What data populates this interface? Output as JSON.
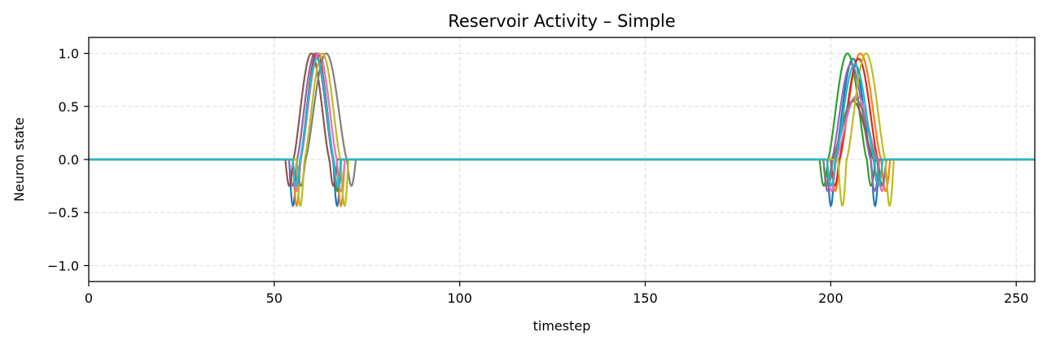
{
  "chart_data": {
    "type": "line",
    "title": "Reservoir Activity – Simple",
    "xlabel": "timestep",
    "ylabel": "Neuron state",
    "xlim": [
      0,
      255
    ],
    "ylim": [
      -1.15,
      1.15
    ],
    "xticks": [
      0,
      50,
      100,
      150,
      200,
      250
    ],
    "xtick_labels": [
      "0",
      "50",
      "100",
      "150",
      "200",
      "250"
    ],
    "yticks": [
      -1.0,
      -0.5,
      0.0,
      0.5,
      1.0
    ],
    "ytick_labels": [
      "−1.0",
      "−0.5",
      "0.0",
      "0.5",
      "1.0"
    ],
    "grid": true,
    "legend": false,
    "series": [
      {
        "color": "#1f77b4",
        "bursts": [
          {
            "onset": 54,
            "width": 14,
            "peak": 1.0,
            "dip": 0.44
          },
          {
            "onset": 199,
            "width": 14,
            "peak": 0.95,
            "dip": 0.44
          }
        ]
      },
      {
        "color": "#ff7f0e",
        "bursts": [
          {
            "onset": 55,
            "width": 14,
            "peak": 1.0,
            "dip": 0.44
          },
          {
            "onset": 200,
            "width": 16,
            "peak": 1.0,
            "dip": 0.3
          }
        ]
      },
      {
        "color": "#2ca02c",
        "bursts": [
          {
            "onset": 55,
            "width": 13,
            "peak": 1.0,
            "dip": 0.3
          },
          {
            "onset": 197,
            "width": 15,
            "peak": 1.0,
            "dip": 0.25
          }
        ]
      },
      {
        "color": "#d62728",
        "bursts": [
          {
            "onset": 55,
            "width": 13,
            "peak": 1.0,
            "dip": 0.25
          },
          {
            "onset": 200,
            "width": 15,
            "peak": 0.95,
            "dip": 0.25
          }
        ]
      },
      {
        "color": "#9467bd",
        "bursts": [
          {
            "onset": 54,
            "width": 14,
            "peak": 1.0,
            "dip": 0.25
          },
          {
            "onset": 198,
            "width": 15,
            "peak": 0.9,
            "dip": 0.3
          }
        ]
      },
      {
        "color": "#8c564b",
        "bursts": [
          {
            "onset": 53,
            "width": 14,
            "peak": 1.0,
            "dip": 0.25
          },
          {
            "onset": 198,
            "width": 16,
            "peak": 0.55,
            "dip": 0.25
          }
        ]
      },
      {
        "color": "#e377c2",
        "bursts": [
          {
            "onset": 55,
            "width": 14,
            "peak": 1.0,
            "dip": 0.3
          },
          {
            "onset": 199,
            "width": 16,
            "peak": 0.6,
            "dip": 0.3
          }
        ]
      },
      {
        "color": "#7f7f7f",
        "bursts": [
          {
            "onset": 56,
            "width": 16,
            "peak": 1.0,
            "dip": 0.25
          },
          {
            "onset": 198,
            "width": 17,
            "peak": 0.57,
            "dip": 0.25
          }
        ]
      },
      {
        "color": "#bcbd22",
        "bursts": [
          {
            "onset": 56,
            "width": 14,
            "peak": 1.0,
            "dip": 0.44
          },
          {
            "onset": 202,
            "width": 15,
            "peak": 1.0,
            "dip": 0.44
          }
        ]
      },
      {
        "color": "#17becf",
        "bursts": [
          {
            "onset": 55,
            "width": 13,
            "peak": 0.95,
            "dip": 0.25
          },
          {
            "onset": 199,
            "width": 15,
            "peak": 0.9,
            "dip": 0.25
          }
        ]
      }
    ]
  }
}
